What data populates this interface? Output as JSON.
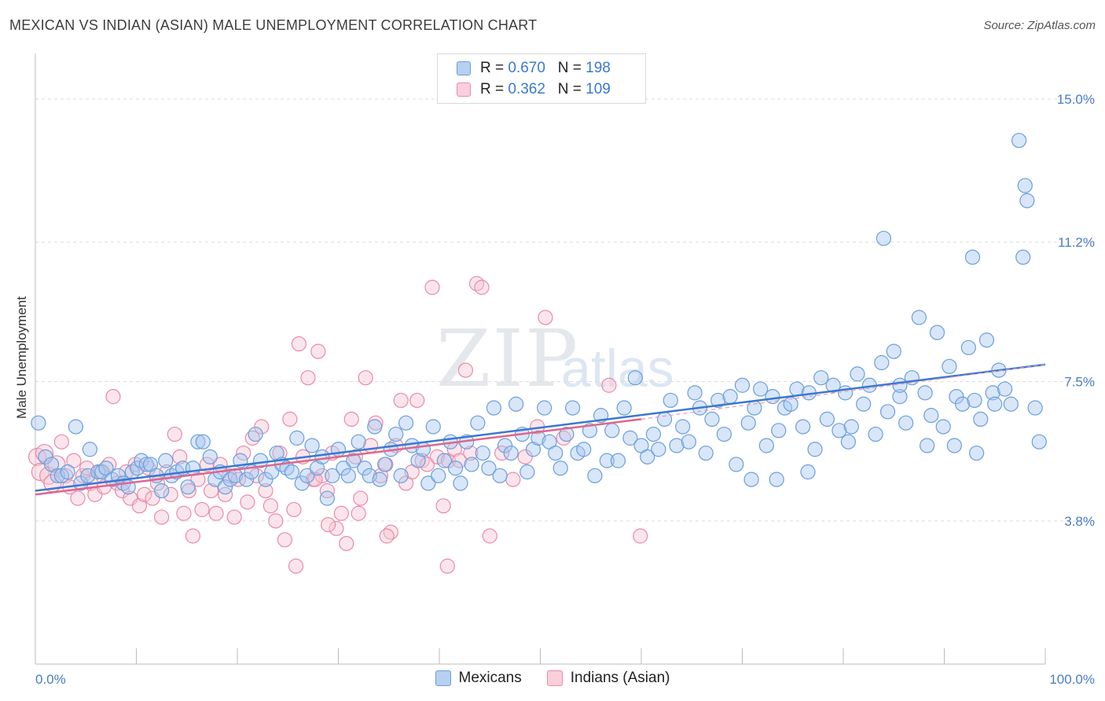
{
  "title": "MEXICAN VS INDIAN (ASIAN) MALE UNEMPLOYMENT CORRELATION CHART",
  "source": "Source: ZipAtlas.com",
  "watermark": {
    "zip": "ZIP",
    "atlas": "atlas"
  },
  "legend": {
    "rows": [
      {
        "r_label": "R =",
        "r_value": "0.670",
        "n_label": "N =",
        "n_value": "198",
        "color": "#a9c8ef",
        "border": "#6a9fdc"
      },
      {
        "r_label": "R =",
        "r_value": "0.362",
        "n_label": "N =",
        "n_value": "109",
        "color": "#f7c6d5",
        "border": "#ea8aa6"
      }
    ]
  },
  "bottom_legend": [
    {
      "label": "Mexicans",
      "color": "#b6d0f2",
      "border": "#6a9fdc"
    },
    {
      "label": "Indians (Asian)",
      "color": "#f9cfdc",
      "border": "#ea8aa6"
    }
  ],
  "chart_data": {
    "type": "scatter",
    "title": "MEXICAN VS INDIAN (ASIAN) MALE UNEMPLOYMENT CORRELATION CHART",
    "xlabel": "",
    "ylabel": "Male Unemployment",
    "xlim": [
      0,
      100
    ],
    "ylim": [
      0,
      16.0
    ],
    "x_tick_labels": [
      "0.0%",
      "100.0%"
    ],
    "y_ticks": [
      3.8,
      7.5,
      11.2,
      15.0
    ],
    "y_tick_labels": [
      "3.8%",
      "7.5%",
      "11.2%",
      "15.0%"
    ],
    "grid": true,
    "legend_position": "top-center",
    "series": [
      {
        "name": "Mexicans",
        "color": "#6a9fdc",
        "fill": "#a9c8ef",
        "trend": {
          "x": [
            0,
            100
          ],
          "y": [
            4.6,
            7.95
          ]
        },
        "points": [
          [
            0.3,
            6.4
          ],
          [
            1.0,
            5.5
          ],
          [
            1.6,
            5.3
          ],
          [
            2.2,
            5.0
          ],
          [
            2.6,
            5.0
          ],
          [
            3.2,
            5.1
          ],
          [
            4.0,
            6.3
          ],
          [
            4.5,
            4.8
          ],
          [
            5.2,
            5.0
          ],
          [
            5.4,
            5.7
          ],
          [
            6.2,
            5.1
          ],
          [
            6.6,
            5.1
          ],
          [
            7.0,
            5.2
          ],
          [
            7.6,
            4.9
          ],
          [
            8.2,
            5.0
          ],
          [
            8.7,
            4.8
          ],
          [
            9.2,
            4.7
          ],
          [
            9.6,
            5.1
          ],
          [
            10.1,
            5.2
          ],
          [
            10.5,
            5.4
          ],
          [
            11.0,
            5.3
          ],
          [
            11.4,
            5.3
          ],
          [
            12.0,
            5.0
          ],
          [
            12.5,
            4.6
          ],
          [
            12.9,
            5.4
          ],
          [
            13.5,
            5.0
          ],
          [
            14.0,
            5.1
          ],
          [
            14.6,
            5.2
          ],
          [
            15.1,
            4.7
          ],
          [
            15.6,
            5.2
          ],
          [
            16.1,
            5.9
          ],
          [
            16.6,
            5.9
          ],
          [
            17.3,
            5.5
          ],
          [
            17.8,
            4.9
          ],
          [
            18.3,
            5.1
          ],
          [
            18.8,
            4.7
          ],
          [
            19.3,
            4.9
          ],
          [
            19.8,
            5.0
          ],
          [
            20.3,
            5.4
          ],
          [
            20.9,
            4.9
          ],
          [
            21.4,
            5.1
          ],
          [
            21.8,
            6.1
          ],
          [
            22.3,
            5.4
          ],
          [
            22.8,
            4.9
          ],
          [
            23.4,
            5.1
          ],
          [
            23.9,
            5.6
          ],
          [
            24.4,
            5.3
          ],
          [
            24.9,
            5.2
          ],
          [
            25.4,
            5.1
          ],
          [
            25.9,
            6.0
          ],
          [
            26.4,
            4.8
          ],
          [
            26.9,
            5.0
          ],
          [
            27.4,
            5.8
          ],
          [
            27.9,
            5.2
          ],
          [
            28.4,
            5.5
          ],
          [
            28.9,
            4.4
          ],
          [
            29.4,
            5.0
          ],
          [
            30.0,
            5.7
          ],
          [
            30.5,
            5.2
          ],
          [
            31.0,
            5.0
          ],
          [
            31.5,
            5.4
          ],
          [
            32.0,
            5.9
          ],
          [
            32.6,
            5.2
          ],
          [
            33.1,
            5.0
          ],
          [
            33.6,
            6.3
          ],
          [
            34.1,
            4.9
          ],
          [
            34.6,
            5.3
          ],
          [
            35.2,
            5.7
          ],
          [
            35.7,
            6.1
          ],
          [
            36.2,
            5.0
          ],
          [
            36.7,
            6.4
          ],
          [
            37.3,
            5.8
          ],
          [
            37.9,
            5.4
          ],
          [
            38.4,
            5.7
          ],
          [
            38.9,
            4.8
          ],
          [
            39.4,
            6.3
          ],
          [
            39.9,
            5.0
          ],
          [
            40.5,
            5.4
          ],
          [
            41.1,
            5.9
          ],
          [
            41.6,
            5.2
          ],
          [
            42.1,
            4.8
          ],
          [
            42.7,
            5.9
          ],
          [
            43.2,
            5.3
          ],
          [
            43.8,
            6.4
          ],
          [
            44.3,
            5.6
          ],
          [
            44.9,
            5.2
          ],
          [
            45.4,
            6.8
          ],
          [
            46.0,
            5.0
          ],
          [
            46.5,
            5.8
          ],
          [
            47.1,
            5.6
          ],
          [
            47.6,
            6.9
          ],
          [
            48.2,
            6.1
          ],
          [
            48.7,
            5.1
          ],
          [
            49.3,
            5.7
          ],
          [
            49.8,
            6.0
          ],
          [
            50.4,
            6.8
          ],
          [
            50.9,
            5.9
          ],
          [
            51.5,
            5.6
          ],
          [
            52.0,
            5.2
          ],
          [
            52.6,
            6.1
          ],
          [
            53.2,
            6.8
          ],
          [
            53.7,
            5.6
          ],
          [
            54.3,
            5.7
          ],
          [
            54.9,
            6.2
          ],
          [
            55.4,
            5.0
          ],
          [
            56.0,
            6.6
          ],
          [
            56.6,
            5.4
          ],
          [
            57.1,
            6.2
          ],
          [
            57.7,
            5.4
          ],
          [
            58.3,
            6.8
          ],
          [
            58.9,
            6.0
          ],
          [
            59.4,
            7.6
          ],
          [
            60.0,
            5.8
          ],
          [
            60.6,
            5.5
          ],
          [
            61.2,
            6.1
          ],
          [
            61.7,
            5.7
          ],
          [
            62.3,
            6.5
          ],
          [
            62.9,
            7.0
          ],
          [
            63.5,
            5.8
          ],
          [
            64.1,
            6.3
          ],
          [
            64.7,
            5.9
          ],
          [
            65.3,
            7.2
          ],
          [
            65.8,
            6.8
          ],
          [
            66.4,
            5.6
          ],
          [
            67.0,
            6.5
          ],
          [
            67.6,
            7.0
          ],
          [
            68.2,
            6.1
          ],
          [
            68.8,
            7.1
          ],
          [
            69.4,
            5.3
          ],
          [
            70.0,
            7.4
          ],
          [
            70.6,
            6.4
          ],
          [
            71.2,
            6.8
          ],
          [
            71.8,
            7.3
          ],
          [
            72.4,
            5.8
          ],
          [
            73.0,
            7.1
          ],
          [
            73.6,
            6.2
          ],
          [
            74.2,
            6.8
          ],
          [
            74.8,
            6.9
          ],
          [
            75.4,
            7.3
          ],
          [
            76.0,
            6.3
          ],
          [
            76.6,
            7.2
          ],
          [
            77.2,
            5.7
          ],
          [
            77.8,
            7.6
          ],
          [
            78.4,
            6.5
          ],
          [
            79.0,
            7.4
          ],
          [
            79.6,
            6.2
          ],
          [
            80.2,
            7.2
          ],
          [
            80.8,
            6.3
          ],
          [
            81.4,
            7.7
          ],
          [
            82.0,
            6.9
          ],
          [
            82.6,
            7.4
          ],
          [
            83.2,
            6.1
          ],
          [
            83.8,
            8.0
          ],
          [
            84.4,
            6.7
          ],
          [
            85.0,
            8.3
          ],
          [
            85.6,
            7.1
          ],
          [
            86.2,
            6.4
          ],
          [
            86.8,
            7.6
          ],
          [
            87.5,
            9.2
          ],
          [
            88.1,
            7.2
          ],
          [
            88.7,
            6.6
          ],
          [
            89.3,
            8.8
          ],
          [
            89.9,
            6.3
          ],
          [
            90.5,
            7.9
          ],
          [
            91.2,
            7.1
          ],
          [
            91.8,
            6.9
          ],
          [
            92.4,
            8.4
          ],
          [
            93.0,
            7.0
          ],
          [
            93.6,
            6.5
          ],
          [
            94.2,
            8.6
          ],
          [
            94.8,
            7.2
          ],
          [
            95.4,
            7.8
          ],
          [
            96.0,
            7.3
          ],
          [
            96.6,
            6.9
          ],
          [
            84.0,
            11.3
          ],
          [
            92.8,
            10.8
          ],
          [
            97.8,
            10.8
          ],
          [
            98.0,
            12.7
          ],
          [
            98.2,
            12.3
          ],
          [
            97.4,
            13.9
          ],
          [
            85.6,
            7.4
          ],
          [
            88.3,
            5.8
          ],
          [
            91.0,
            5.8
          ],
          [
            93.2,
            5.6
          ],
          [
            95.0,
            6.9
          ],
          [
            99.0,
            6.8
          ],
          [
            99.4,
            5.9
          ],
          [
            80.5,
            5.9
          ],
          [
            76.5,
            5.1
          ],
          [
            73.4,
            4.9
          ],
          [
            70.9,
            4.9
          ]
        ]
      },
      {
        "name": "Indians (Asian)",
        "color": "#ea8aa6",
        "fill": "#f7c6d5",
        "trend": {
          "x": [
            0,
            60
          ],
          "y": [
            4.5,
            6.5
          ]
        },
        "trend_dashed": {
          "x": [
            60,
            100
          ],
          "y": [
            6.5,
            7.95
          ]
        },
        "points": [
          [
            0.2,
            5.5
          ],
          [
            0.5,
            5.1
          ],
          [
            0.9,
            5.6
          ],
          [
            1.3,
            5.0
          ],
          [
            1.7,
            4.8
          ],
          [
            2.1,
            5.3
          ],
          [
            2.6,
            5.9
          ],
          [
            3.0,
            5.0
          ],
          [
            3.4,
            4.7
          ],
          [
            3.8,
            5.4
          ],
          [
            4.2,
            4.4
          ],
          [
            4.7,
            5.0
          ],
          [
            5.1,
            5.2
          ],
          [
            5.5,
            4.8
          ],
          [
            5.9,
            4.5
          ],
          [
            6.4,
            5.1
          ],
          [
            6.8,
            4.7
          ],
          [
            7.3,
            5.3
          ],
          [
            7.7,
            7.1
          ],
          [
            8.1,
            4.8
          ],
          [
            8.6,
            4.6
          ],
          [
            9.0,
            5.1
          ],
          [
            9.4,
            4.4
          ],
          [
            9.9,
            5.3
          ],
          [
            10.3,
            4.2
          ],
          [
            10.8,
            4.5
          ],
          [
            11.2,
            5.2
          ],
          [
            11.6,
            4.4
          ],
          [
            12.1,
            4.8
          ],
          [
            12.5,
            3.9
          ],
          [
            13.0,
            5.1
          ],
          [
            13.4,
            4.5
          ],
          [
            13.8,
            6.1
          ],
          [
            14.3,
            5.5
          ],
          [
            14.7,
            4.0
          ],
          [
            15.2,
            4.6
          ],
          [
            15.6,
            3.4
          ],
          [
            16.1,
            4.9
          ],
          [
            16.5,
            4.1
          ],
          [
            17.0,
            5.3
          ],
          [
            17.4,
            4.6
          ],
          [
            17.9,
            4.0
          ],
          [
            18.3,
            5.3
          ],
          [
            18.8,
            4.5
          ],
          [
            19.2,
            5.0
          ],
          [
            19.7,
            3.9
          ],
          [
            20.1,
            4.9
          ],
          [
            20.6,
            5.6
          ],
          [
            21.0,
            4.3
          ],
          [
            21.5,
            6.0
          ],
          [
            21.9,
            5.0
          ],
          [
            22.4,
            6.3
          ],
          [
            22.8,
            4.6
          ],
          [
            23.3,
            4.2
          ],
          [
            23.8,
            3.8
          ],
          [
            24.2,
            5.6
          ],
          [
            24.7,
            3.3
          ],
          [
            25.2,
            6.5
          ],
          [
            25.6,
            4.1
          ],
          [
            26.1,
            8.5
          ],
          [
            26.5,
            5.5
          ],
          [
            27.0,
            7.6
          ],
          [
            27.5,
            4.9
          ],
          [
            28.0,
            8.3
          ],
          [
            28.4,
            5.0
          ],
          [
            28.9,
            4.6
          ],
          [
            29.4,
            5.6
          ],
          [
            29.8,
            3.6
          ],
          [
            30.3,
            4.0
          ],
          [
            30.8,
            3.2
          ],
          [
            31.3,
            6.5
          ],
          [
            31.7,
            5.5
          ],
          [
            32.2,
            4.4
          ],
          [
            32.7,
            7.6
          ],
          [
            33.2,
            5.8
          ],
          [
            33.7,
            6.4
          ],
          [
            34.2,
            5.0
          ],
          [
            34.7,
            5.3
          ],
          [
            35.2,
            3.5
          ],
          [
            35.7,
            5.8
          ],
          [
            36.2,
            7.0
          ],
          [
            36.7,
            4.8
          ],
          [
            37.3,
            5.1
          ],
          [
            37.8,
            7.0
          ],
          [
            38.3,
            5.4
          ],
          [
            38.8,
            5.3
          ],
          [
            39.3,
            10.0
          ],
          [
            39.8,
            5.5
          ],
          [
            40.4,
            4.2
          ],
          [
            40.9,
            5.4
          ],
          [
            41.5,
            5.7
          ],
          [
            42.0,
            5.4
          ],
          [
            42.6,
            7.8
          ],
          [
            43.1,
            5.6
          ],
          [
            43.7,
            10.1
          ],
          [
            44.2,
            10.0
          ],
          [
            45.0,
            3.4
          ],
          [
            46.2,
            5.6
          ],
          [
            47.3,
            4.9
          ],
          [
            48.5,
            5.5
          ],
          [
            49.7,
            6.3
          ],
          [
            34.8,
            3.4
          ],
          [
            32.0,
            4.0
          ],
          [
            29.0,
            3.7
          ],
          [
            27.7,
            4.9
          ],
          [
            25.8,
            2.6
          ],
          [
            40.8,
            2.6
          ],
          [
            59.9,
            3.4
          ],
          [
            50.5,
            9.2
          ],
          [
            56.8,
            7.4
          ],
          [
            52.3,
            6.0
          ]
        ]
      }
    ]
  }
}
